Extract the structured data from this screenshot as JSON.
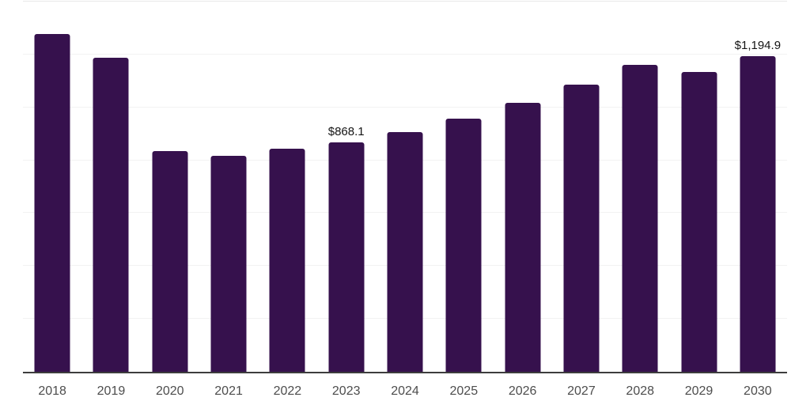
{
  "chart_data": {
    "type": "bar",
    "categories": [
      "2018",
      "2019",
      "2020",
      "2021",
      "2022",
      "2023",
      "2024",
      "2025",
      "2026",
      "2027",
      "2028",
      "2029",
      "2030"
    ],
    "values": [
      1276,
      1188,
      836,
      818,
      845,
      868.1,
      906,
      958,
      1016,
      1085,
      1161,
      1135,
      1194.9
    ],
    "annotations": [
      {
        "index": 5,
        "text": "$868.1"
      },
      {
        "index": 12,
        "text": "$1,194.9"
      }
    ],
    "ylim": [
      0,
      1400
    ],
    "gridline_step": 200,
    "grid": "horizontal",
    "legend_position": "none",
    "bar_color": "#36114d",
    "axis_line_color": "#3d3d3d",
    "gridline_color": "#f2f2f2",
    "tick_label_color": "#4d4d4d",
    "data_label_color": "#141414",
    "background_color": "#ffffff"
  }
}
